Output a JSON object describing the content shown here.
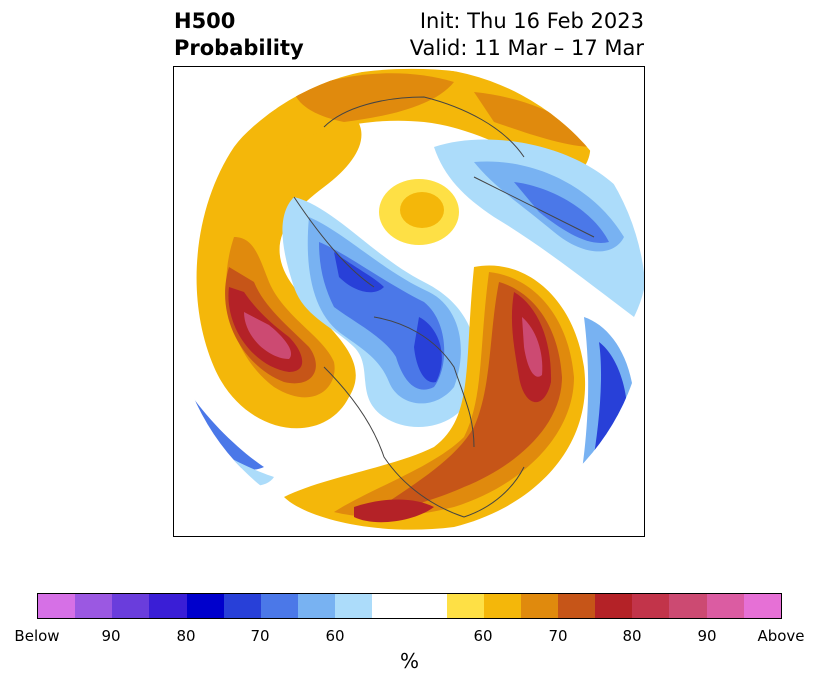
{
  "title": {
    "left_line1": "H500",
    "left_line2": "Probability",
    "right_line1": "Init: Thu 16 Feb 2023",
    "right_line2": "Valid: 11 Mar – 17 Mar"
  },
  "map": {
    "projection": "north-polar-stereographic",
    "field": "500 hPa height probability",
    "features": {
      "strong_below": [
        "Greenland / Canadian Arctic",
        "Siberia",
        "Eastern Pacific"
      ],
      "strong_above": [
        "Gulf of Alaska",
        "Southeastern United States",
        "Western Europe / Atlantic",
        "Central Russia"
      ]
    }
  },
  "colorbar": {
    "colors": [
      "#d670e6",
      "#9b58e2",
      "#6a3ddc",
      "#3a1ed6",
      "#0000cc",
      "#2840d8",
      "#4b78e8",
      "#78b2f2",
      "#acdcfa",
      "#ffffff",
      "#fee045",
      "#f4b70a",
      "#e08a0d",
      "#c65518",
      "#b42227",
      "#c2344a",
      "#cc4a72",
      "#db5ca2",
      "#e670d6"
    ],
    "ticks": [
      "Below",
      "90",
      "80",
      "70",
      "60",
      "60",
      "70",
      "80",
      "90",
      "Above"
    ],
    "unit": "%"
  }
}
